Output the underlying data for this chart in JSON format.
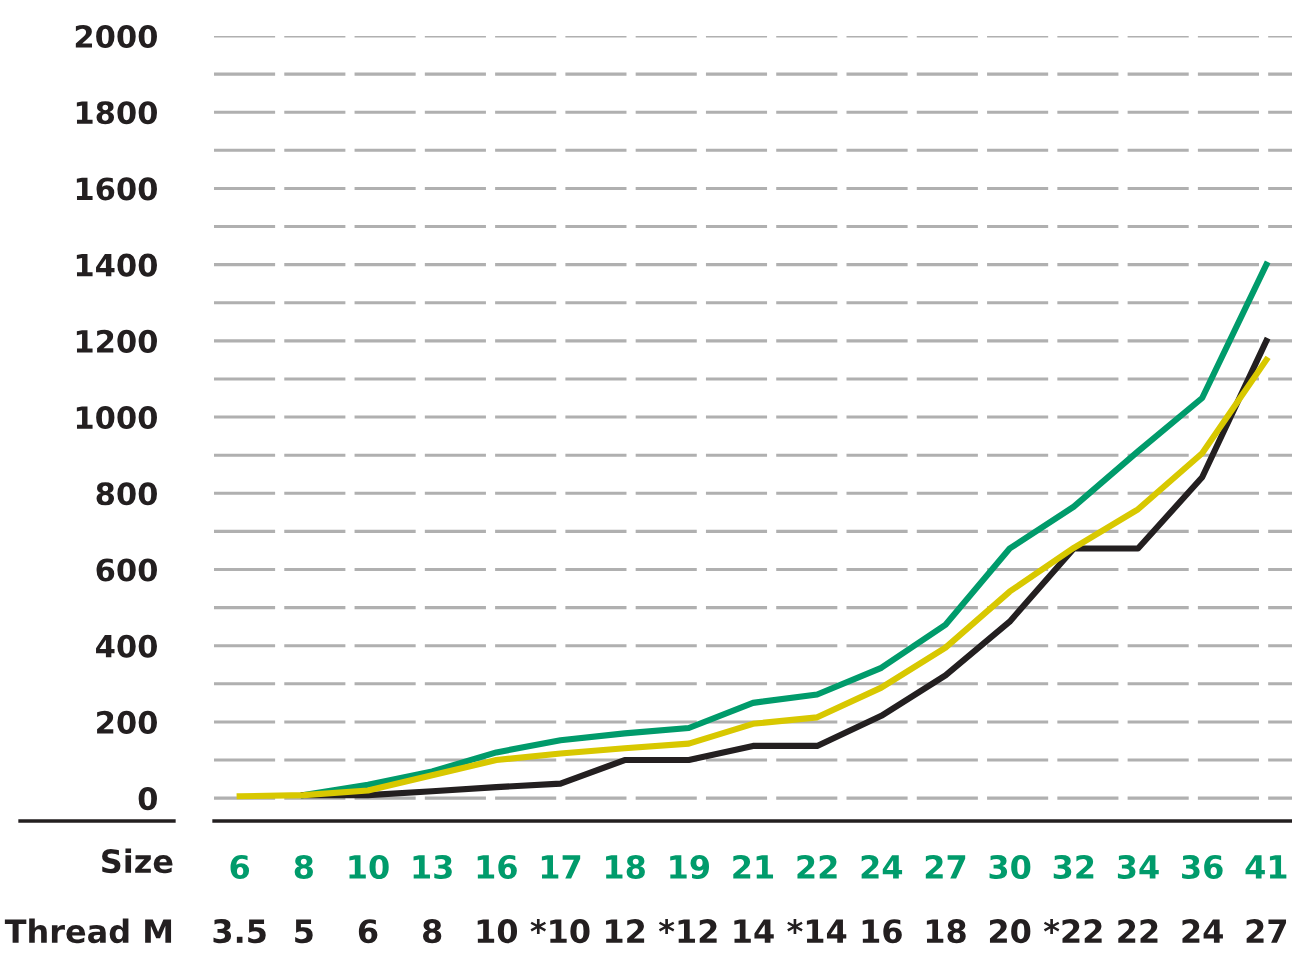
{
  "chart_data": {
    "type": "line",
    "categories": [
      "6",
      "8",
      "10",
      "13",
      "16",
      "17",
      "18",
      "19",
      "21",
      "22",
      "24",
      "27",
      "30",
      "32",
      "34",
      "36",
      "41"
    ],
    "xlabel": "Size",
    "annotations": [
      "Thread M",
      "3.5",
      "5",
      "6",
      "8",
      "10",
      "*10",
      "12",
      "*12",
      "14",
      "*14",
      "16",
      "18",
      "20",
      "*22",
      "22",
      "24",
      "27"
    ],
    "series": [
      {
        "color": "#009b6b",
        "values": [
          null,
          8,
          35,
          70,
          120,
          152,
          170,
          184,
          250,
          272,
          342,
          455,
          655,
          765,
          910,
          1050,
          1400
        ]
      },
      {
        "color": "#231f20",
        "values": [
          null,
          8,
          8,
          18,
          29,
          38,
          100,
          100,
          137,
          137,
          216,
          322,
          463,
          655,
          655,
          842,
          1200
        ]
      },
      {
        "color": "#d8c800",
        "values": [
          5,
          8,
          20,
          60,
          100,
          117,
          131,
          143,
          195,
          212,
          290,
          395,
          542,
          657,
          758,
          905,
          1150
        ]
      }
    ],
    "ylim": [
      -60,
      2000
    ],
    "yticks": [
      0,
      {
        "value": 100,
        "label": null
      },
      200,
      {
        "value": 300,
        "label": null
      },
      400,
      {
        "value": 500,
        "label": null
      },
      600,
      {
        "value": 700,
        "label": null
      },
      800,
      {
        "value": 900,
        "label": null
      },
      1000,
      {
        "value": 1100,
        "label": null
      },
      1200,
      {
        "value": 1300,
        "label": null
      },
      1400,
      {
        "value": 1500,
        "label": null
      },
      1600,
      {
        "value": 1700,
        "label": null
      },
      1800,
      {
        "value": 1900,
        "label": null
      },
      2000
    ],
    "grid": "y",
    "legend": false,
    "marker": "none",
    "line_style": "solid"
  }
}
